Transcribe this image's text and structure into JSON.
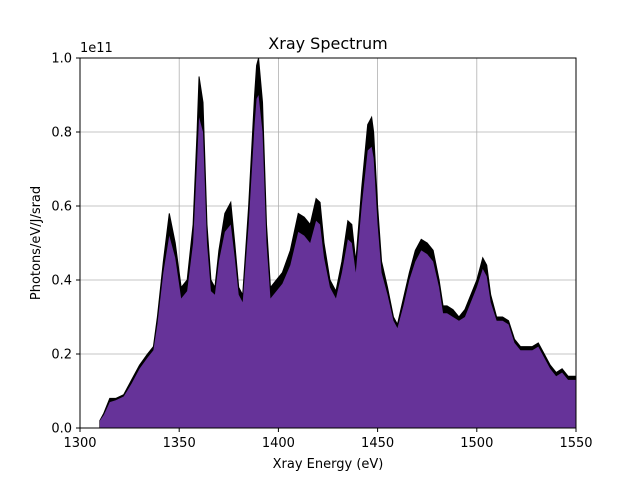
{
  "chart_data": {
    "type": "area",
    "title": "Xray Spectrum",
    "xlabel": "Xray Energy (eV)",
    "ylabel": "Photons/eV/J/srad",
    "offset_label": "1e11",
    "xlim": [
      1300,
      1550
    ],
    "ylim": [
      0,
      1.0
    ],
    "grid": true,
    "xticks": [
      1300,
      1350,
      1400,
      1450,
      1500,
      1550
    ],
    "yticks": [
      0.0,
      0.2,
      0.4,
      0.6,
      0.8,
      1.0
    ],
    "xtick_labels": [
      "1300",
      "1350",
      "1400",
      "1450",
      "1500",
      "1550"
    ],
    "ytick_labels": [
      "0.0",
      "0.2",
      "0.4",
      "0.6",
      "0.8",
      "1.0"
    ],
    "series": [
      {
        "role": "upper-envelope",
        "color": "#000000",
        "x": [
          1310,
          1312,
          1315,
          1318,
          1322,
          1326,
          1330,
          1334,
          1337,
          1339,
          1342,
          1345,
          1348,
          1351,
          1354,
          1357,
          1359,
          1360,
          1362,
          1364,
          1366,
          1368,
          1370,
          1373,
          1376,
          1378,
          1380,
          1382,
          1385,
          1388,
          1389,
          1390,
          1392,
          1394,
          1396,
          1399,
          1402,
          1406,
          1410,
          1413,
          1416,
          1419,
          1421,
          1423,
          1426,
          1429,
          1432,
          1435,
          1437,
          1439,
          1442,
          1445,
          1447,
          1448,
          1450,
          1452,
          1455,
          1458,
          1460,
          1463,
          1466,
          1469,
          1472,
          1475,
          1478,
          1481,
          1483,
          1485,
          1488,
          1491,
          1494,
          1497,
          1500,
          1503,
          1505,
          1507,
          1510,
          1513,
          1516,
          1519,
          1522,
          1525,
          1528,
          1531,
          1534,
          1537,
          1540,
          1543,
          1546,
          1550
        ],
        "y": [
          0.02,
          0.04,
          0.08,
          0.08,
          0.09,
          0.13,
          0.17,
          0.2,
          0.22,
          0.3,
          0.45,
          0.58,
          0.5,
          0.38,
          0.4,
          0.55,
          0.8,
          0.95,
          0.88,
          0.55,
          0.4,
          0.38,
          0.48,
          0.58,
          0.61,
          0.5,
          0.38,
          0.36,
          0.6,
          0.9,
          0.98,
          1.0,
          0.88,
          0.55,
          0.38,
          0.4,
          0.42,
          0.48,
          0.58,
          0.57,
          0.55,
          0.62,
          0.61,
          0.5,
          0.4,
          0.37,
          0.45,
          0.56,
          0.55,
          0.45,
          0.65,
          0.82,
          0.84,
          0.8,
          0.6,
          0.45,
          0.38,
          0.3,
          0.28,
          0.35,
          0.42,
          0.48,
          0.51,
          0.5,
          0.48,
          0.4,
          0.33,
          0.33,
          0.32,
          0.3,
          0.32,
          0.36,
          0.4,
          0.46,
          0.44,
          0.36,
          0.3,
          0.3,
          0.29,
          0.24,
          0.22,
          0.22,
          0.22,
          0.23,
          0.2,
          0.17,
          0.15,
          0.16,
          0.14,
          0.14
        ]
      },
      {
        "role": "filled-area",
        "color": "#663399",
        "x": [
          1310,
          1312,
          1315,
          1318,
          1322,
          1326,
          1330,
          1334,
          1337,
          1339,
          1342,
          1345,
          1348,
          1351,
          1354,
          1357,
          1359,
          1360,
          1362,
          1364,
          1366,
          1368,
          1370,
          1373,
          1376,
          1378,
          1380,
          1382,
          1385,
          1388,
          1389,
          1390,
          1392,
          1394,
          1396,
          1399,
          1402,
          1406,
          1410,
          1413,
          1416,
          1419,
          1421,
          1423,
          1426,
          1429,
          1432,
          1435,
          1437,
          1439,
          1442,
          1445,
          1447,
          1448,
          1450,
          1452,
          1455,
          1458,
          1460,
          1463,
          1466,
          1469,
          1472,
          1475,
          1478,
          1481,
          1483,
          1485,
          1488,
          1491,
          1494,
          1497,
          1500,
          1503,
          1505,
          1507,
          1510,
          1513,
          1516,
          1519,
          1522,
          1525,
          1528,
          1531,
          1534,
          1537,
          1540,
          1543,
          1546,
          1550
        ],
        "y": [
          0.02,
          0.035,
          0.07,
          0.075,
          0.085,
          0.12,
          0.16,
          0.19,
          0.21,
          0.28,
          0.42,
          0.52,
          0.46,
          0.35,
          0.37,
          0.5,
          0.72,
          0.84,
          0.8,
          0.5,
          0.37,
          0.36,
          0.45,
          0.53,
          0.55,
          0.46,
          0.36,
          0.34,
          0.55,
          0.82,
          0.89,
          0.9,
          0.8,
          0.5,
          0.35,
          0.37,
          0.39,
          0.44,
          0.53,
          0.52,
          0.5,
          0.56,
          0.55,
          0.46,
          0.38,
          0.35,
          0.42,
          0.51,
          0.5,
          0.42,
          0.6,
          0.75,
          0.76,
          0.73,
          0.55,
          0.42,
          0.36,
          0.29,
          0.27,
          0.33,
          0.4,
          0.45,
          0.48,
          0.47,
          0.45,
          0.38,
          0.31,
          0.31,
          0.3,
          0.29,
          0.3,
          0.34,
          0.38,
          0.43,
          0.41,
          0.34,
          0.29,
          0.29,
          0.28,
          0.23,
          0.21,
          0.21,
          0.21,
          0.22,
          0.19,
          0.16,
          0.14,
          0.15,
          0.13,
          0.13
        ]
      }
    ]
  }
}
